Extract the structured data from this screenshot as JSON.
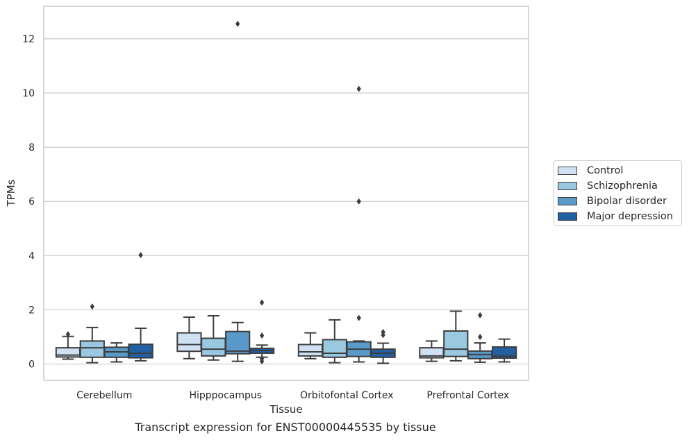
{
  "chart_data": {
    "type": "box",
    "title": "Transcript expression for ENST00000445535 by tissue",
    "xlabel": "Tissue",
    "ylabel": "TPMs",
    "ylim": [
      -0.6,
      13.2
    ],
    "yticks": [
      0,
      2,
      4,
      6,
      8,
      10,
      12
    ],
    "grid": "horizontal",
    "legend_position": "right",
    "categories": [
      "Cerebellum",
      "Hipppocampus",
      "Orbitofontal Cortex",
      "Prefrontal Cortex"
    ],
    "series": [
      {
        "name": "Control",
        "color": "#d0e2f2",
        "boxes": [
          {
            "whislo": 0.18,
            "q1": 0.26,
            "med": 0.33,
            "q3": 0.6,
            "whishi": 1.02,
            "fliers": [
              1.1
            ]
          },
          {
            "whislo": 0.2,
            "q1": 0.47,
            "med": 0.72,
            "q3": 1.15,
            "whishi": 1.73,
            "fliers": []
          },
          {
            "whislo": 0.2,
            "q1": 0.3,
            "med": 0.45,
            "q3": 0.72,
            "whishi": 1.15,
            "fliers": []
          },
          {
            "whislo": 0.1,
            "q1": 0.23,
            "med": 0.3,
            "q3": 0.6,
            "whishi": 0.85,
            "fliers": []
          }
        ]
      },
      {
        "name": "Schizophrenia",
        "color": "#9ac8e0",
        "boxes": [
          {
            "whislo": 0.05,
            "q1": 0.25,
            "med": 0.6,
            "q3": 0.85,
            "whishi": 1.35,
            "fliers": [
              2.12
            ]
          },
          {
            "whislo": 0.15,
            "q1": 0.3,
            "med": 0.55,
            "q3": 0.95,
            "whishi": 1.78,
            "fliers": []
          },
          {
            "whislo": 0.05,
            "q1": 0.25,
            "med": 0.4,
            "q3": 0.9,
            "whishi": 1.63,
            "fliers": []
          },
          {
            "whislo": 0.12,
            "q1": 0.28,
            "med": 0.55,
            "q3": 1.22,
            "whishi": 1.95,
            "fliers": []
          }
        ]
      },
      {
        "name": "Bipolar disorder",
        "color": "#5a9ac9",
        "boxes": [
          {
            "whislo": 0.08,
            "q1": 0.25,
            "med": 0.45,
            "q3": 0.62,
            "whishi": 0.78,
            "fliers": []
          },
          {
            "whislo": 0.1,
            "q1": 0.38,
            "med": 0.48,
            "q3": 1.2,
            "whishi": 1.53,
            "fliers": [
              12.55
            ]
          },
          {
            "whislo": 0.08,
            "q1": 0.28,
            "med": 0.55,
            "q3": 0.82,
            "whishi": 0.85,
            "fliers": [
              1.7,
              6.0,
              10.15
            ]
          },
          {
            "whislo": 0.07,
            "q1": 0.2,
            "med": 0.35,
            "q3": 0.48,
            "whishi": 0.78,
            "fliers": [
              1.0,
              1.8
            ]
          }
        ]
      },
      {
        "name": "Major depression",
        "color": "#2260a4",
        "boxes": [
          {
            "whislo": 0.12,
            "q1": 0.23,
            "med": 0.4,
            "q3": 0.73,
            "whishi": 1.32,
            "fliers": [
              4.02
            ]
          },
          {
            "whislo": 0.25,
            "q1": 0.4,
            "med": 0.5,
            "q3": 0.58,
            "whishi": 0.7,
            "fliers": [
              0.1,
              0.2,
              1.05,
              2.27
            ]
          },
          {
            "whislo": 0.03,
            "q1": 0.25,
            "med": 0.4,
            "q3": 0.55,
            "whishi": 0.77,
            "fliers": [
              1.07,
              1.18
            ]
          },
          {
            "whislo": 0.08,
            "q1": 0.22,
            "med": 0.3,
            "q3": 0.63,
            "whishi": 0.92,
            "fliers": []
          }
        ]
      }
    ]
  }
}
